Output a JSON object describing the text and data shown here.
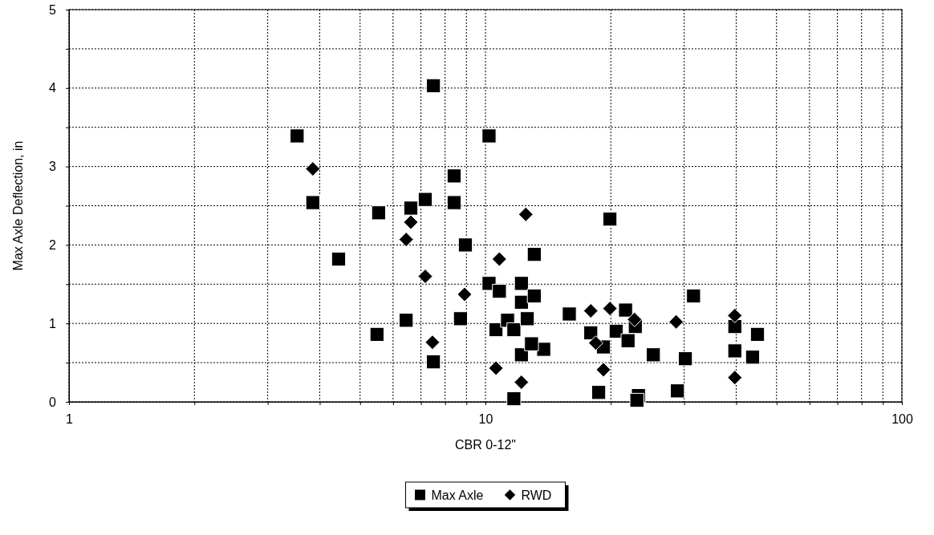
{
  "chart_data": {
    "type": "scatter",
    "xlabel": "CBR 0-12\"",
    "ylabel": "Max Axle Deflection, in",
    "log": "x",
    "grid": true,
    "legend": "bottom",
    "xlim": [
      1,
      100
    ],
    "xticks": [
      1,
      {
        "value": 2,
        "label": null
      },
      {
        "value": 3,
        "label": null
      },
      {
        "value": 4,
        "label": null
      },
      {
        "value": 5,
        "label": null
      },
      {
        "value": 6,
        "label": null
      },
      {
        "value": 7,
        "label": null
      },
      {
        "value": 8,
        "label": null
      },
      {
        "value": 9,
        "label": null
      },
      10,
      {
        "value": 20,
        "label": null
      },
      {
        "value": 30,
        "label": null
      },
      {
        "value": 40,
        "label": null
      },
      {
        "value": 50,
        "label": null
      },
      {
        "value": 60,
        "label": null
      },
      {
        "value": 70,
        "label": null
      },
      {
        "value": 80,
        "label": null
      },
      {
        "value": 90,
        "label": null
      },
      100
    ],
    "ylim": [
      0,
      5
    ],
    "yticks": [
      0,
      {
        "value": 0.5,
        "label": null
      },
      1,
      {
        "value": 1.5,
        "label": null
      },
      2,
      {
        "value": 2.5,
        "label": null
      },
      3,
      {
        "value": 3.5,
        "label": null
      },
      4,
      {
        "value": 4.5,
        "label": null
      },
      5
    ],
    "series": [
      {
        "name": "Max Axle",
        "color": "#000000",
        "marker": "square",
        "x": [
          3.53,
          3.85,
          4.44,
          5.54,
          5.49,
          6.45,
          6.62,
          7.17,
          7.5,
          7.5,
          8.41,
          8.41,
          8.71,
          8.95,
          10.2,
          10.2,
          10.8,
          10.6,
          11.3,
          11.7,
          11.7,
          12.2,
          12.2,
          12.6,
          13.1,
          13.1,
          12.2,
          13.8,
          12.9,
          15.9,
          21.7,
          22.9,
          20.6,
          17.9,
          19.2,
          22.0,
          25.3,
          30.2,
          31.6,
          19.9,
          18.7,
          23.3,
          23.1,
          28.9,
          39.7,
          45.0,
          39.7,
          43.8
        ],
        "values": [
          3.39,
          2.54,
          1.82,
          2.41,
          0.86,
          1.04,
          2.47,
          2.58,
          4.03,
          0.51,
          2.88,
          2.54,
          1.06,
          2.0,
          3.39,
          1.51,
          1.41,
          0.92,
          1.04,
          0.92,
          0.04,
          1.51,
          1.27,
          1.06,
          1.88,
          1.35,
          0.6,
          0.67,
          0.74,
          1.12,
          1.17,
          0.96,
          0.9,
          0.88,
          0.7,
          0.78,
          0.6,
          0.55,
          1.35,
          2.33,
          0.12,
          0.08,
          0.02,
          0.14,
          0.96,
          0.86,
          0.65,
          0.57
        ]
      },
      {
        "name": "RWD",
        "color": "#000000",
        "marker": "diamond",
        "x": [
          3.85,
          6.62,
          6.45,
          10.8,
          7.17,
          8.91,
          7.46,
          10.6,
          12.5,
          17.9,
          19.9,
          22.8,
          28.7,
          18.4,
          19.2,
          12.2,
          39.7,
          39.7
        ],
        "values": [
          2.97,
          2.29,
          2.07,
          1.82,
          1.6,
          1.37,
          0.76,
          0.43,
          2.39,
          1.16,
          1.19,
          1.05,
          1.02,
          0.75,
          0.41,
          0.25,
          1.1,
          0.31
        ]
      }
    ]
  }
}
